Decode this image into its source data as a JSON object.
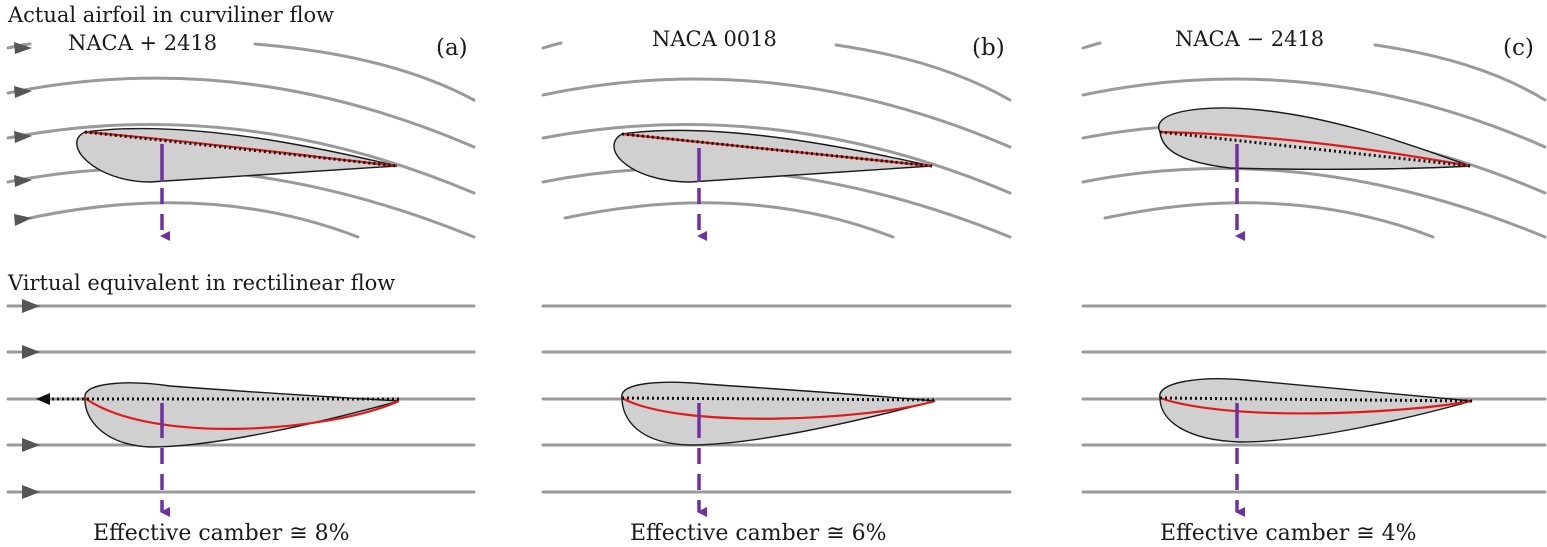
{
  "figure": {
    "title_curvilinear": "Actual airfoil in curviliner flow",
    "title_rectilinear": "Virtual equivalent in rectilinear flow",
    "panels": [
      {
        "tag": "(a)",
        "name": "NACA + 2418",
        "effective_camber": "Effective camber  ≅ 8%"
      },
      {
        "tag": "(b)",
        "name": "NACA 0018",
        "effective_camber": "Effective camber  ≅ 6%"
      },
      {
        "tag": "(c)",
        "name": "NACA − 2418",
        "effective_camber": "Effective camber  ≅ 4%"
      }
    ],
    "colors": {
      "streamline": "#9a9a9a",
      "airfoil_fill": "#d0d0d0",
      "camber_line": "#e01a1a",
      "chord_line": "#111111",
      "mapping_arrow": "#7030a0",
      "flow_arrowhead": "#555555"
    }
  }
}
